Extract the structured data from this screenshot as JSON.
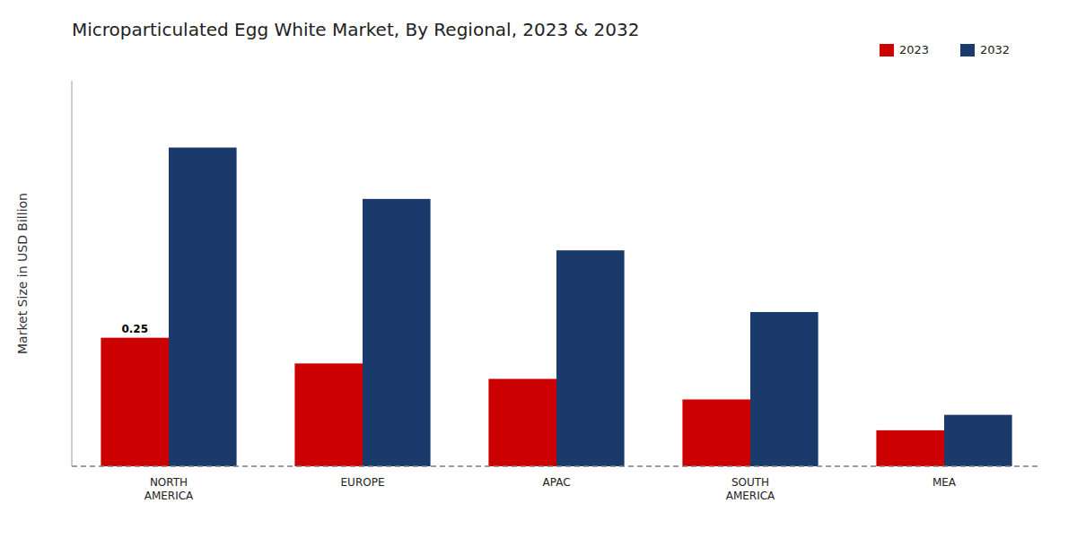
{
  "chart_data": {
    "type": "bar",
    "title": "Microparticulated Egg White Market, By Regional, 2023 & 2032",
    "y_label": "Market Size in USD Billion",
    "categories": [
      "NORTH\nAMERICA",
      "EUROPE",
      "APAC",
      "SOUTH\nAMERICA",
      "MEA"
    ],
    "series": [
      {
        "name": "2023",
        "color": "#cc0000",
        "values": [
          0.25,
          0.2,
          0.17,
          0.13,
          0.07
        ]
      },
      {
        "name": "2032",
        "color": "#1a3a6b",
        "values": [
          0.62,
          0.52,
          0.42,
          0.3,
          0.1
        ]
      }
    ],
    "annotations": [
      {
        "text": "0.25",
        "value": 0.25,
        "series": "2023",
        "category": "NORTH\nAMERICA"
      }
    ],
    "ylim": [
      0,
      0.75
    ],
    "tick_labels": "x",
    "grid": false,
    "legend": "upper right"
  }
}
